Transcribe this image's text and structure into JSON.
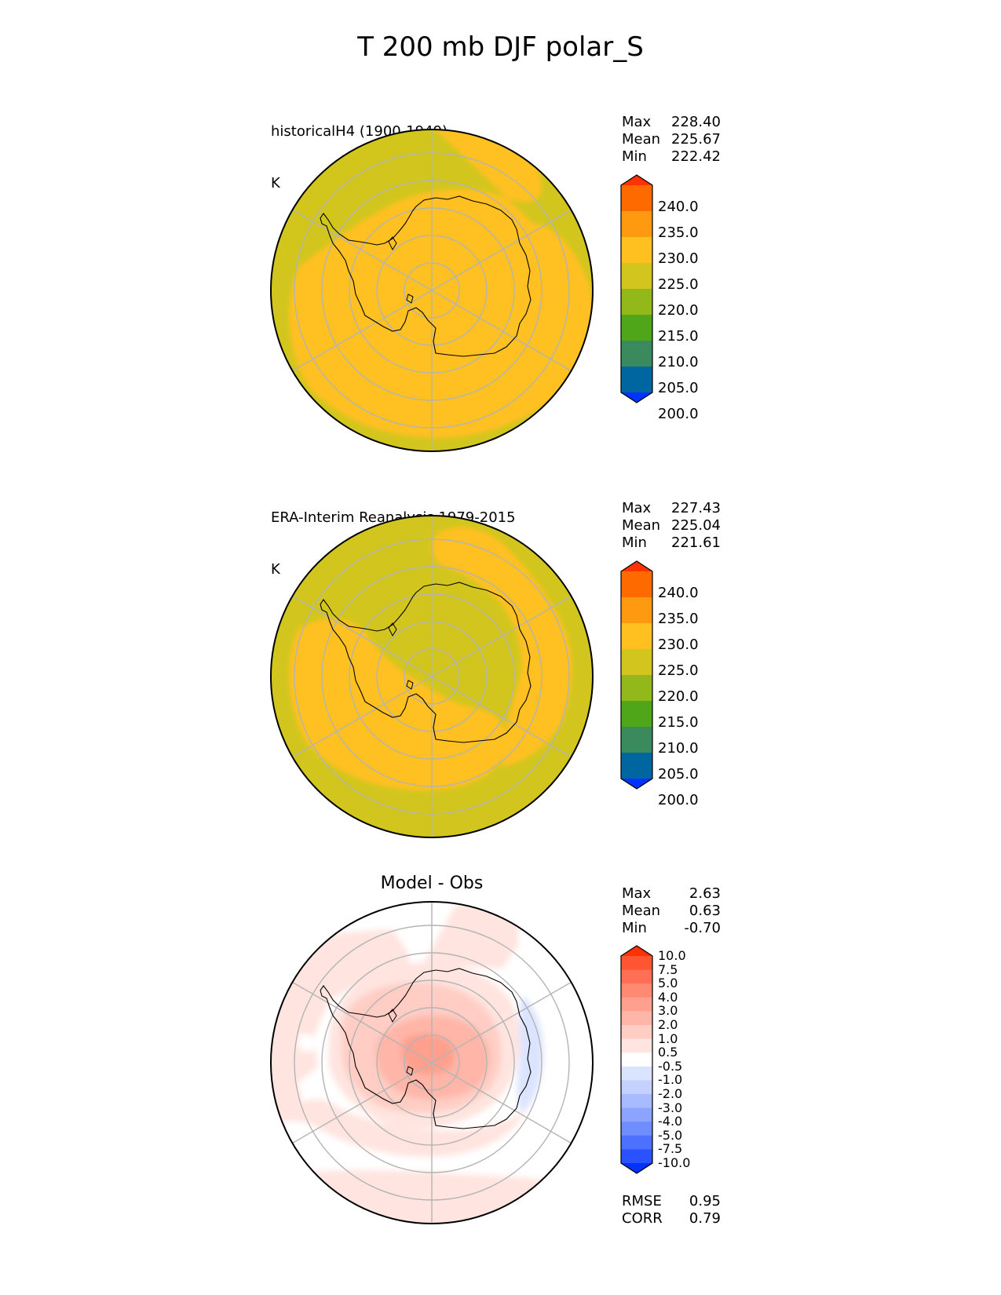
{
  "title": "T 200 mb DJF polar_S",
  "panels": [
    {
      "label_line1": "historicalH4 (1900-1949)",
      "label_line2": "K",
      "stats": [
        {
          "name": "Max",
          "value": "228.40"
        },
        {
          "name": "Mean",
          "value": "225.67"
        },
        {
          "name": "Min",
          "value": "222.42"
        }
      ]
    },
    {
      "label_line1": "ERA-Interim Reanalysis 1979-2015",
      "label_line2": "K",
      "stats": [
        {
          "name": "Max",
          "value": "227.43"
        },
        {
          "name": "Mean",
          "value": "225.04"
        },
        {
          "name": "Min",
          "value": "221.61"
        }
      ]
    },
    {
      "title": "Model - Obs",
      "stats": [
        {
          "name": "Max",
          "value": "2.63"
        },
        {
          "name": "Mean",
          "value": "0.63"
        },
        {
          "name": "Min",
          "value": "-0.70"
        }
      ],
      "metrics": [
        {
          "name": "RMSE",
          "value": "0.95"
        },
        {
          "name": "CORR",
          "value": "0.79"
        }
      ]
    }
  ],
  "colorbars": {
    "absolute": {
      "ticks": [
        "240.0",
        "235.0",
        "230.0",
        "225.0",
        "220.0",
        "215.0",
        "210.0",
        "205.0",
        "200.0"
      ],
      "colors": [
        "#ff3300",
        "#ff6a00",
        "#ff9a10",
        "#ffc020",
        "#d2c61e",
        "#93b81a",
        "#4fa619",
        "#3b8a5e",
        "#0066a0",
        "#0033ff"
      ]
    },
    "difference": {
      "ticks": [
        "10.0",
        "7.5",
        "5.0",
        "4.0",
        "3.0",
        "2.0",
        "1.0",
        "0.5",
        "-0.5",
        "-1.0",
        "-2.0",
        "-3.0",
        "-4.0",
        "-5.0",
        "-7.5",
        "-10.0"
      ],
      "colors": [
        "#ff3300",
        "#ff5533",
        "#ff6f55",
        "#ff8a72",
        "#ffa08e",
        "#ffb6a8",
        "#ffcdc4",
        "#ffe4df",
        "#ffffff",
        "#dbe4ff",
        "#c4d1ff",
        "#a8bbff",
        "#8ca4ff",
        "#6f8dff",
        "#4d70ff",
        "#2a52ff",
        "#0033ff"
      ]
    }
  },
  "chart_data": [
    {
      "type": "heatmap",
      "title": "historicalH4 (1900-1949)",
      "units": "K",
      "projection": "polar south stereographic",
      "levels": [
        200,
        205,
        210,
        215,
        220,
        225,
        230,
        235,
        240
      ],
      "max": 228.4,
      "mean": 225.67,
      "min": 222.42
    },
    {
      "type": "heatmap",
      "title": "ERA-Interim Reanalysis 1979-2015",
      "units": "K",
      "projection": "polar south stereographic",
      "levels": [
        200,
        205,
        210,
        215,
        220,
        225,
        230,
        235,
        240
      ],
      "max": 227.43,
      "mean": 225.04,
      "min": 221.61
    },
    {
      "type": "heatmap",
      "title": "Model - Obs",
      "projection": "polar south stereographic",
      "levels": [
        -10.0,
        -7.5,
        -5.0,
        -4.0,
        -3.0,
        -2.0,
        -1.0,
        -0.5,
        0.5,
        1.0,
        2.0,
        3.0,
        4.0,
        5.0,
        7.5,
        10.0
      ],
      "max": 2.63,
      "mean": 0.63,
      "min": -0.7,
      "rmse": 0.95,
      "corr": 0.79
    }
  ]
}
